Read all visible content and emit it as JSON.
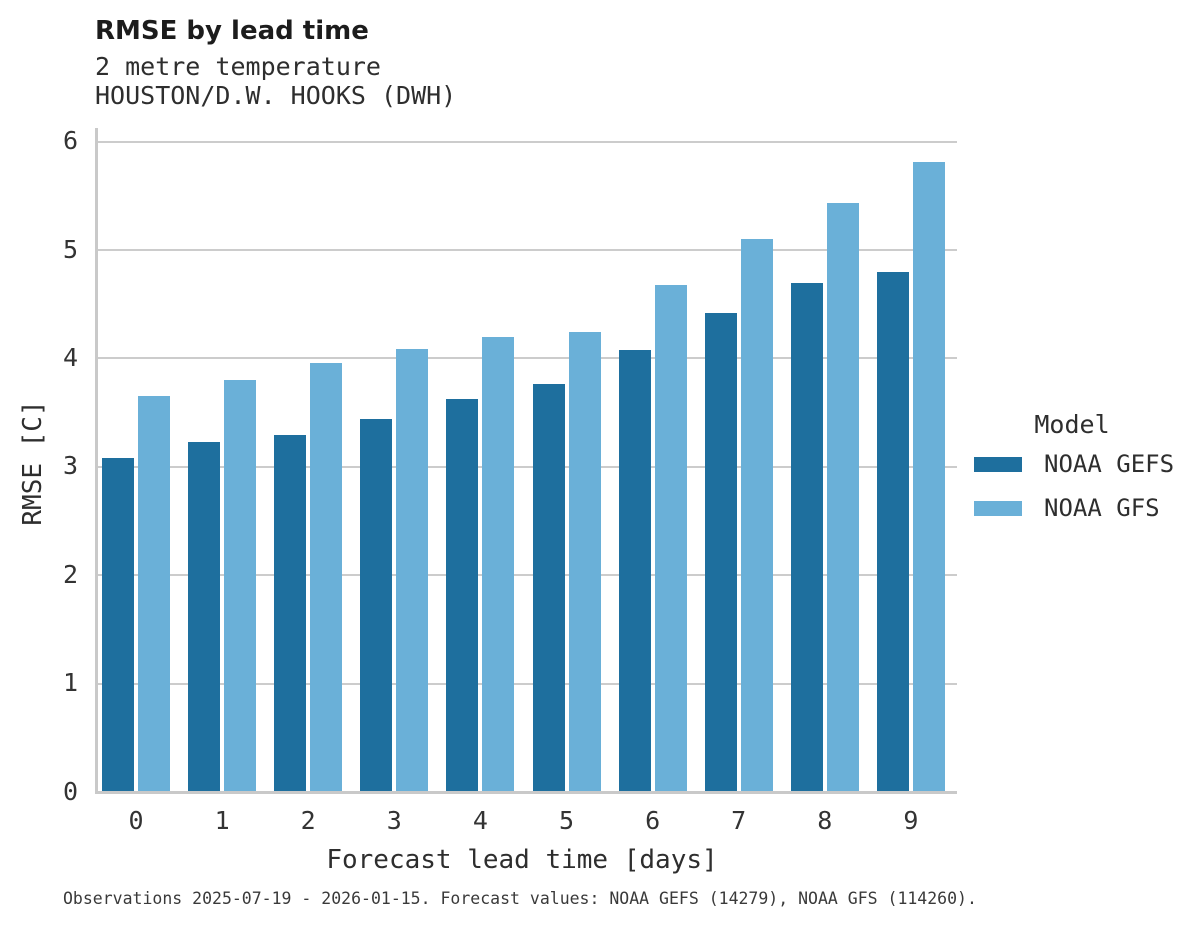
{
  "chart_data": {
    "type": "bar",
    "title": "RMSE by lead time",
    "subtitle_lines": [
      "2 metre temperature",
      "HOUSTON/D.W. HOOKS (DWH)"
    ],
    "xlabel": "Forecast lead time [days]",
    "ylabel": "RMSE [C]",
    "categories": [
      "0",
      "1",
      "2",
      "3",
      "4",
      "5",
      "6",
      "7",
      "8",
      "9"
    ],
    "series": [
      {
        "name": "NOAA GEFS",
        "color": "#1e6f9e",
        "values": [
          3.08,
          3.23,
          3.29,
          3.44,
          3.63,
          3.76,
          4.08,
          4.42,
          4.7,
          4.8
        ]
      },
      {
        "name": "NOAA GFS",
        "color": "#6ab0d8",
        "values": [
          3.65,
          3.8,
          3.96,
          4.09,
          4.2,
          4.24,
          4.68,
          5.1,
          5.43,
          5.81
        ]
      }
    ],
    "ylim": [
      0,
      6
    ],
    "yticks": [
      0,
      1,
      2,
      3,
      4,
      5,
      6
    ],
    "grid": true,
    "legend_position": "right",
    "legend_title": "Model",
    "caption": "Observations 2025-07-19 - 2026-01-15. Forecast values: NOAA GEFS (14279), NOAA GFS (114260)."
  }
}
